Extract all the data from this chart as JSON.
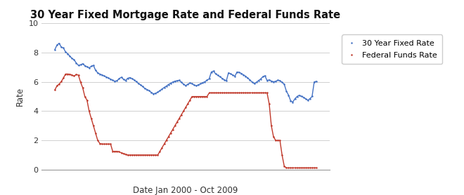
{
  "title": "30 Year Fixed Mortgage Rate and Federal Funds Rate",
  "xlabel": "Date Jan 2000 - Oct 2009",
  "ylabel": "Rate",
  "ylim": [
    0,
    10
  ],
  "yticks": [
    0,
    2,
    4,
    6,
    8,
    10
  ],
  "legend_labels": [
    "30 Year Fixed Rate",
    "Federal Funds Rate"
  ],
  "mortgage_color": "#4472C4",
  "fed_color": "#C0392B",
  "background_color": "#FFFFFF",
  "grid_color": "#D0D0D0",
  "mortgage_rates": [
    8.21,
    8.52,
    8.64,
    8.38,
    8.32,
    8.05,
    7.93,
    7.76,
    7.61,
    7.51,
    7.29,
    7.13,
    7.17,
    7.24,
    7.11,
    7.03,
    6.96,
    7.07,
    7.13,
    6.79,
    6.62,
    6.54,
    6.48,
    6.41,
    6.34,
    6.27,
    6.19,
    6.11,
    6.05,
    6.08,
    6.22,
    6.32,
    6.18,
    6.1,
    6.25,
    6.3,
    6.22,
    6.13,
    6.02,
    5.89,
    5.8,
    5.68,
    5.55,
    5.48,
    5.4,
    5.28,
    5.19,
    5.22,
    5.3,
    5.4,
    5.51,
    5.62,
    5.71,
    5.82,
    5.91,
    5.99,
    6.05,
    6.08,
    6.11,
    5.97,
    5.85,
    5.75,
    5.83,
    5.93,
    5.88,
    5.79,
    5.73,
    5.81,
    5.87,
    5.95,
    6.01,
    6.12,
    6.21,
    6.68,
    6.74,
    6.55,
    6.45,
    6.35,
    6.25,
    6.15,
    6.07,
    6.62,
    6.55,
    6.47,
    6.39,
    6.68,
    6.65,
    6.58,
    6.48,
    6.39,
    6.26,
    6.14,
    5.99,
    5.89,
    5.97,
    6.09,
    6.2,
    6.35,
    6.42,
    6.1,
    6.14,
    6.06,
    6.01,
    6.04,
    6.12,
    6.09,
    5.97,
    5.85,
    5.37,
    5.1,
    4.71,
    4.62,
    4.85,
    5.0,
    5.09,
    5.01,
    4.95,
    4.85,
    4.75,
    4.85,
    5.01,
    6.0,
    6.04
  ],
  "fed_rates": [
    5.45,
    5.73,
    5.85,
    6.02,
    6.27,
    6.54,
    6.54,
    6.52,
    6.47,
    6.4,
    6.51,
    6.46,
    5.98,
    5.6,
    5.0,
    4.75,
    4.0,
    3.5,
    3.0,
    2.5,
    2.0,
    1.79,
    1.75,
    1.75,
    1.75,
    1.75,
    1.75,
    1.25,
    1.25,
    1.25,
    1.22,
    1.15,
    1.1,
    1.05,
    1.0,
    1.0,
    1.0,
    1.0,
    1.0,
    1.0,
    1.0,
    1.0,
    1.0,
    1.0,
    1.0,
    1.0,
    1.0,
    1.0,
    1.0,
    1.25,
    1.5,
    1.75,
    2.0,
    2.25,
    2.5,
    2.75,
    3.0,
    3.25,
    3.5,
    3.75,
    4.0,
    4.25,
    4.5,
    4.75,
    5.0,
    5.0,
    5.0,
    5.0,
    5.0,
    5.0,
    5.0,
    5.0,
    5.25,
    5.25,
    5.25,
    5.25,
    5.25,
    5.25,
    5.25,
    5.25,
    5.25,
    5.25,
    5.25,
    5.25,
    5.25,
    5.25,
    5.25,
    5.25,
    5.25,
    5.25,
    5.25,
    5.25,
    5.25,
    5.25,
    5.25,
    5.25,
    5.25,
    5.25,
    5.25,
    5.25,
    4.5,
    3.0,
    2.25,
    2.0,
    2.0,
    2.0,
    1.0,
    0.25,
    0.12,
    0.12,
    0.12,
    0.12,
    0.12,
    0.12,
    0.12,
    0.12,
    0.12,
    0.12,
    0.12,
    0.12,
    0.12,
    0.12,
    0.12
  ]
}
